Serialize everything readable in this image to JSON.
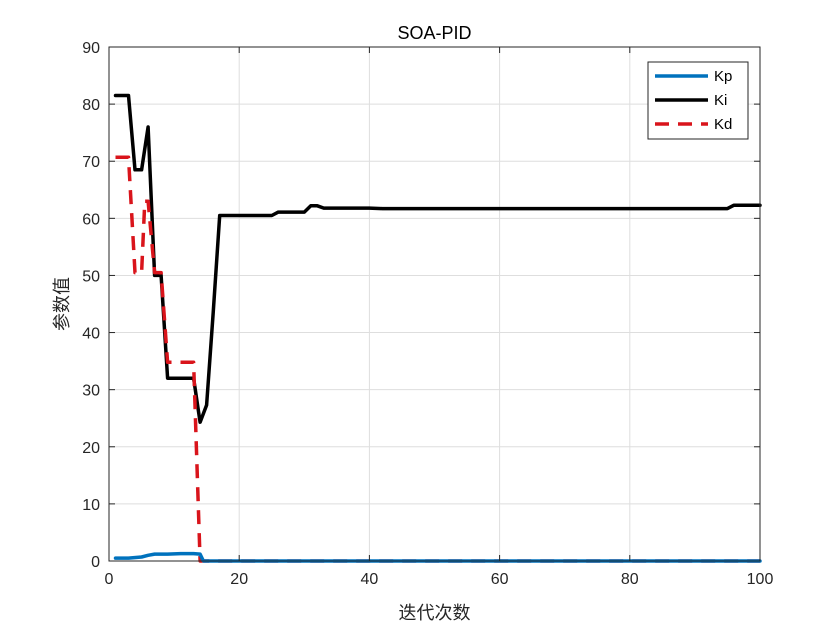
{
  "chart_data": {
    "type": "line",
    "title": "SOA-PID",
    "xlabel": "迭代次数",
    "ylabel": "参数值",
    "xlim": [
      0,
      100
    ],
    "ylim": [
      0,
      90
    ],
    "xticks": [
      0,
      20,
      40,
      60,
      80,
      100
    ],
    "yticks": [
      0,
      10,
      20,
      30,
      40,
      50,
      60,
      70,
      80,
      90
    ],
    "grid": true,
    "legend_position": "top-right",
    "series": [
      {
        "name": "Kp",
        "color": "#0072BD",
        "style": "solid",
        "x": [
          1,
          3,
          5,
          6,
          7,
          9,
          11,
          13,
          14,
          14.5,
          100
        ],
        "y": [
          0.5,
          0.5,
          0.7,
          1.0,
          1.2,
          1.2,
          1.3,
          1.3,
          1.2,
          0,
          0
        ]
      },
      {
        "name": "Ki",
        "color": "#000000",
        "style": "solid",
        "x": [
          1,
          3,
          4,
          5,
          6,
          7,
          8,
          9,
          10,
          11,
          12,
          13,
          14,
          15,
          16,
          17,
          18,
          20,
          22,
          25,
          26,
          28,
          30,
          31,
          32,
          33,
          40,
          42,
          95,
          96,
          100
        ],
        "y": [
          81.5,
          81.5,
          68.5,
          68.5,
          76,
          50,
          50,
          32,
          32,
          32,
          32,
          32,
          24.3,
          27.3,
          43.5,
          60.5,
          60.5,
          60.5,
          60.5,
          60.5,
          61.1,
          61.1,
          61.1,
          62.2,
          62.2,
          61.8,
          61.8,
          61.7,
          61.7,
          62.3,
          62.3
        ]
      },
      {
        "name": "Kd",
        "color": "#D9141B",
        "style": "dashed",
        "x": [
          1,
          3,
          4,
          5,
          5.5,
          6,
          7,
          8,
          9,
          10,
          12,
          13,
          14,
          100
        ],
        "y": [
          70.7,
          70.7,
          50.5,
          50.5,
          63.0,
          63.0,
          50.5,
          50.5,
          34.8,
          34.8,
          34.8,
          34.8,
          0,
          0
        ]
      }
    ]
  }
}
